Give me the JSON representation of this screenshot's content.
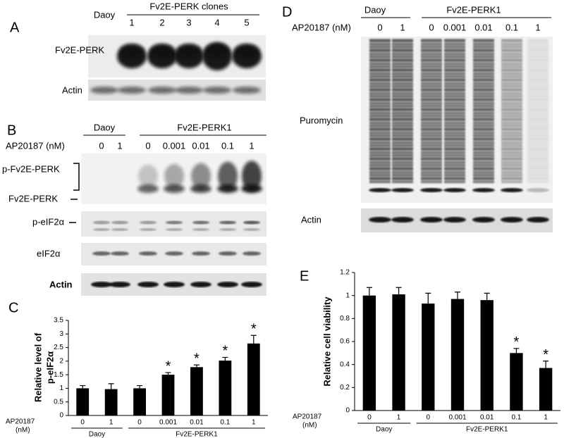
{
  "panel_a": {
    "label": "A",
    "control": "Daoy",
    "header": "Fv2E-PERK clones",
    "lanes": [
      "1",
      "2",
      "3",
      "4",
      "5"
    ],
    "blots": [
      "Fv2E-PERK",
      "Actin"
    ]
  },
  "panel_b": {
    "label": "B",
    "control": "Daoy",
    "treated": "Fv2E-PERK1",
    "dose_label": "AP20187 (nM)",
    "doses": [
      "0",
      "1",
      "0",
      "0.001",
      "0.01",
      "0.1",
      "1"
    ],
    "blots": [
      "p-Fv2E-PERK",
      "Fv2E-PERK",
      "p-eIF2α",
      "eIF2α",
      "Actin"
    ]
  },
  "panel_d": {
    "label": "D",
    "control": "Daoy",
    "treated": "Fv2E-PERK1",
    "dose_label": "AP20187 (nM)",
    "doses": [
      "0",
      "1",
      "0",
      "0.001",
      "0.01",
      "0.1",
      "1"
    ],
    "blots": [
      "Puromycin",
      "Actin"
    ]
  },
  "chart_data": [
    {
      "type": "bar",
      "label": "C",
      "y_label": [
        "Relative level of",
        "p-eIF2α"
      ],
      "x_label": [
        "AP20187",
        "(nM)"
      ],
      "categories": [
        "0",
        "1",
        "0",
        "0.001",
        "0.01",
        "0.1",
        "1"
      ],
      "groups": [
        "Daoy",
        "Fv2E-PERK1"
      ],
      "values": [
        1.0,
        0.97,
        1.0,
        1.5,
        1.78,
        2.02,
        2.65
      ],
      "errors": [
        0.1,
        0.2,
        0.1,
        0.08,
        0.08,
        0.12,
        0.3
      ],
      "significance": [
        null,
        null,
        null,
        "*",
        "*",
        "*",
        "*"
      ],
      "color": "#000000",
      "ylim": [
        0,
        3.5
      ],
      "yticks": [
        0,
        0.5,
        1,
        1.5,
        2,
        2.5,
        3,
        3.5
      ]
    },
    {
      "type": "bar",
      "label": "E",
      "y_label": [
        "Relative cell viability"
      ],
      "x_label": [
        "AP20187",
        "(nM)"
      ],
      "categories": [
        "0",
        "1",
        "0",
        "0.001",
        "0.01",
        "0.1",
        "1"
      ],
      "groups": [
        "Daoy",
        "Fv2E-PERK1"
      ],
      "values": [
        1.0,
        1.01,
        0.93,
        0.97,
        0.96,
        0.5,
        0.37
      ],
      "errors": [
        0.07,
        0.06,
        0.09,
        0.06,
        0.06,
        0.04,
        0.06
      ],
      "significance": [
        null,
        null,
        null,
        null,
        null,
        "*",
        "*"
      ],
      "color": "#000000",
      "ylim": [
        0,
        1.2
      ],
      "yticks": [
        0,
        0.2,
        0.4,
        0.6,
        0.8,
        1,
        1.2
      ]
    }
  ]
}
